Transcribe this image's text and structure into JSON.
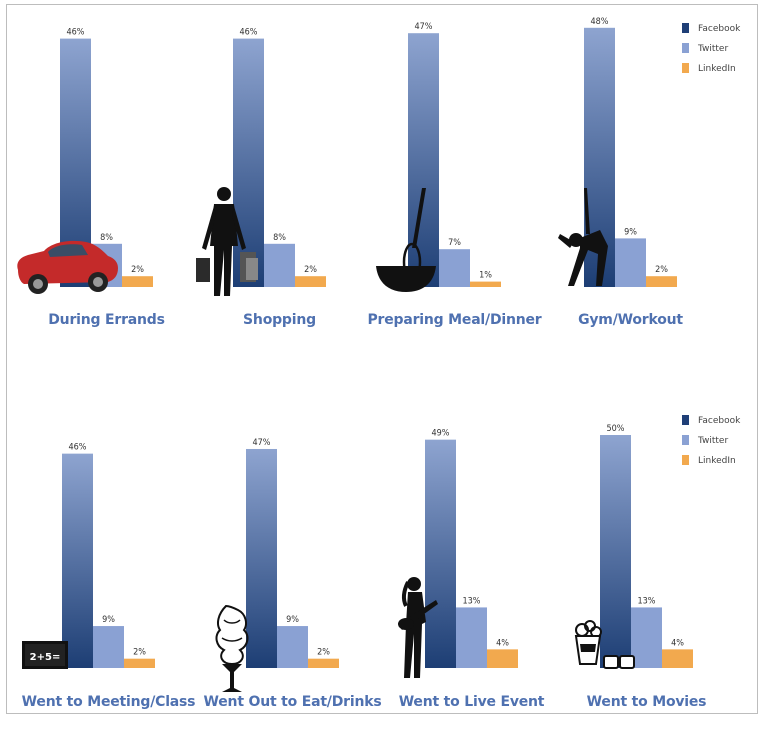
{
  "chart_data": [
    {
      "type": "bar",
      "categories": [
        "During Errands",
        "Shopping",
        "Preparing Meal/Dinner",
        "Gym/Workout"
      ],
      "series": [
        {
          "name": "Facebook",
          "values": [
            46,
            46,
            47,
            48
          ]
        },
        {
          "name": "Twitter",
          "values": [
            8,
            8,
            7,
            9
          ]
        },
        {
          "name": "LinkedIn",
          "values": [
            2,
            2,
            1,
            2
          ]
        }
      ],
      "value_labels": [
        [
          "46%",
          "8%",
          "2%"
        ],
        [
          "46%",
          "8%",
          "2%"
        ],
        [
          "47%",
          "7%",
          "1%"
        ],
        [
          "48%",
          "9%",
          "2%"
        ]
      ],
      "legend": [
        "Facebook",
        "Twitter",
        "LinkedIn"
      ],
      "legend_position": "top-right",
      "grid": false
    },
    {
      "type": "bar",
      "categories": [
        "Went to Meeting/Class",
        "Went Out to Eat/Drinks",
        "Went to Live Event",
        "Went to Movies"
      ],
      "series": [
        {
          "name": "Facebook",
          "values": [
            46,
            47,
            49,
            50
          ]
        },
        {
          "name": "Twitter",
          "values": [
            9,
            9,
            13,
            13
          ]
        },
        {
          "name": "LinkedIn",
          "values": [
            2,
            2,
            4,
            4
          ]
        }
      ],
      "value_labels": [
        [
          "46%",
          "9%",
          "2%"
        ],
        [
          "47%",
          "9%",
          "2%"
        ],
        [
          "49%",
          "13%",
          "4%"
        ],
        [
          "50%",
          "13%",
          "4%"
        ]
      ],
      "legend": [
        "Facebook",
        "Twitter",
        "LinkedIn"
      ],
      "legend_position": "top-right",
      "grid": false
    }
  ],
  "colors": {
    "facebook_top": "#8ea4d0",
    "facebook_bottom": "#1d3e74",
    "twitter": "#8aa1d3",
    "linkedin": "#f2a94e",
    "category_text": "#4f71b0",
    "legend_facebook": "#1f3f77"
  },
  "icons": [
    "car-icon",
    "shopper-icon",
    "whisk-bowl-icon",
    "stretching-person-icon",
    "chalkboard-icon",
    "ice-cream-icon",
    "guitarist-icon",
    "popcorn-glasses-icon"
  ]
}
